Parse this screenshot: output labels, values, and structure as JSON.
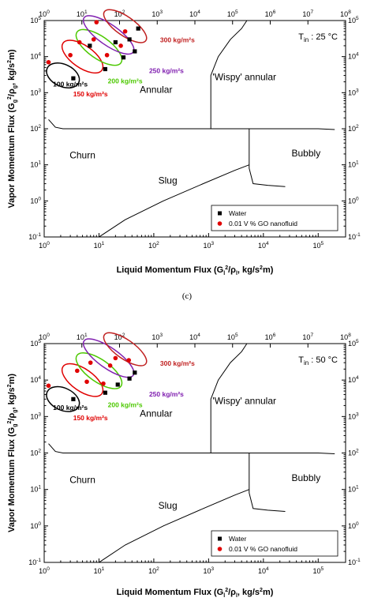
{
  "caption": "(c)",
  "chart_data": [
    {
      "type": "scatter",
      "title": "",
      "temperature_label": "T",
      "temperature_subscript": "in",
      "temperature_value": ": 25 °C",
      "xlabel": "Liquid Momentum Flux (G_l^2/ρ_l, kg/s^2m)",
      "ylabel": "Vapor Momentum Flux (G_g^2/ρ_g, kg/s^2m)",
      "xscale": "log",
      "yscale": "log",
      "xlim": [
        1,
        100000000
      ],
      "ylim": [
        0.1,
        100000
      ],
      "x_ticks_bottom": [
        "10^0",
        "10^1",
        "10^2",
        "10^3",
        "10^4",
        "10^5"
      ],
      "x_ticks_top": [
        "10^0",
        "10^1",
        "10^2",
        "10^3",
        "10^4",
        "10^5",
        "10^6",
        "10^7",
        "10^8"
      ],
      "y_ticks": [
        "10^-1",
        "10^0",
        "10^1",
        "10^2",
        "10^3",
        "10^4",
        "10^5"
      ],
      "regions": [
        "Annular",
        "'Wispy' annular",
        "Churn",
        "Slug",
        "Bubbly"
      ],
      "legend": {
        "position": "bottom-right",
        "entries": [
          "Water",
          "0.01 V % GO nanofluid"
        ]
      },
      "series": [
        {
          "name": "Water",
          "color": "#000000",
          "marker": "square",
          "x": [
            3.4,
            13,
            28,
            45,
            6.8,
            20,
            36,
            52
          ],
          "y": [
            2500,
            4500,
            9500,
            14000,
            20000,
            25000,
            30000,
            60000
          ]
        },
        {
          "name": "0.01 V % GO nanofluid",
          "color": "#e00000",
          "marker": "circle",
          "x": [
            1.2,
            4.4,
            8,
            25,
            3,
            14,
            9,
            30
          ],
          "y": [
            7000,
            25000,
            30000,
            20000,
            11000,
            11000,
            90000,
            50000
          ]
        }
      ],
      "mass_flux_groups": [
        {
          "label": "100 kg/m²s",
          "color": "#000000"
        },
        {
          "label": "150 kg/m²s",
          "color": "#e00000"
        },
        {
          "label": "200 kg/m²s",
          "color": "#4cc800"
        },
        {
          "label": "250 kg/m²s",
          "color": "#8020b0"
        },
        {
          "label": "300 kg/m²s",
          "color": "#c02020"
        }
      ]
    },
    {
      "type": "scatter",
      "title": "",
      "temperature_label": "T",
      "temperature_subscript": "in",
      "temperature_value": ": 50 °C",
      "xlabel": "Liquid Momentum Flux (G_l^2/ρ_l, kg/s^2m)",
      "ylabel": "Vapor Momentum Flux (G_g^2/ρ_g, kg/s^2m)",
      "xscale": "log",
      "yscale": "log",
      "xlim": [
        1,
        100000000
      ],
      "ylim": [
        0.1,
        100000
      ],
      "x_ticks_bottom": [
        "10^0",
        "10^1",
        "10^2",
        "10^3",
        "10^4",
        "10^5"
      ],
      "x_ticks_top": [
        "10^0",
        "10^1",
        "10^2",
        "10^3",
        "10^4",
        "10^5",
        "10^6",
        "10^7",
        "10^8"
      ],
      "y_ticks": [
        "10^-1",
        "10^0",
        "10^1",
        "10^2",
        "10^3",
        "10^4",
        "10^5"
      ],
      "regions": [
        "Annular",
        "'Wispy' annular",
        "Churn",
        "Slug",
        "Bubbly"
      ],
      "legend": {
        "position": "bottom-right",
        "entries": [
          "Water",
          "0.01 V % GO nanofluid"
        ]
      },
      "series": [
        {
          "name": "Water",
          "color": "#000000",
          "marker": "square",
          "x": [
            3.4,
            13,
            22,
            45,
            36
          ],
          "y": [
            3000,
            4500,
            7500,
            16000,
            11000
          ]
        },
        {
          "name": "0.01 V % GO nanofluid",
          "color": "#e00000",
          "marker": "circle",
          "x": [
            1.2,
            4,
            7,
            16,
            6,
            20,
            35,
            12
          ],
          "y": [
            7000,
            18000,
            30000,
            25000,
            9000,
            40000,
            35000,
            8000
          ]
        }
      ],
      "mass_flux_groups": [
        {
          "label": "100 kg/m²s",
          "color": "#000000"
        },
        {
          "label": "150 kg/m²s",
          "color": "#e00000"
        },
        {
          "label": "200 kg/m²s",
          "color": "#4cc800"
        },
        {
          "label": "250 kg/m²s",
          "color": "#8020b0"
        },
        {
          "label": "300 kg/m²s",
          "color": "#c02020"
        }
      ]
    }
  ]
}
